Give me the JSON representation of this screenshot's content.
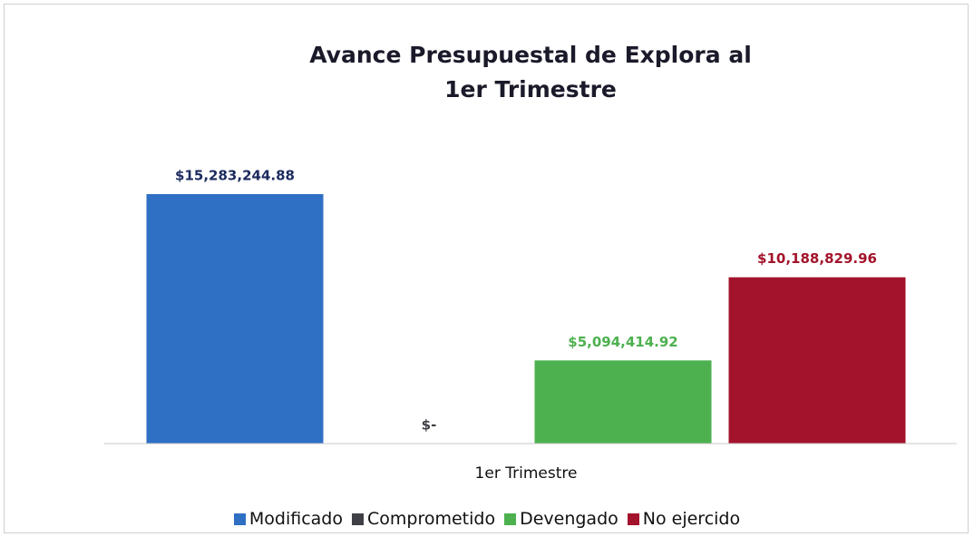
{
  "chart_data": {
    "type": "bar",
    "title": "Avance Presupuestal de Explora al 1er Trimestre",
    "categories": [
      "1er Trimestre"
    ],
    "series": [
      {
        "name": "Modificado",
        "color": "#2f6fc4",
        "values": [
          15283244.88
        ],
        "value_labels": [
          "$15,283,244.88"
        ]
      },
      {
        "name": "Comprometido",
        "color": "#3f3f46",
        "values": [
          0
        ],
        "value_labels": [
          "$-"
        ]
      },
      {
        "name": "Devengado",
        "color": "#4db14f",
        "values": [
          5094414.92
        ],
        "value_labels": [
          "$5,094,414.92"
        ]
      },
      {
        "name": "No ejercido",
        "color": "#a3132b",
        "values": [
          10188829.96
        ],
        "value_labels": [
          "$10,188,829.96"
        ]
      }
    ],
    "legend": "bottom"
  }
}
